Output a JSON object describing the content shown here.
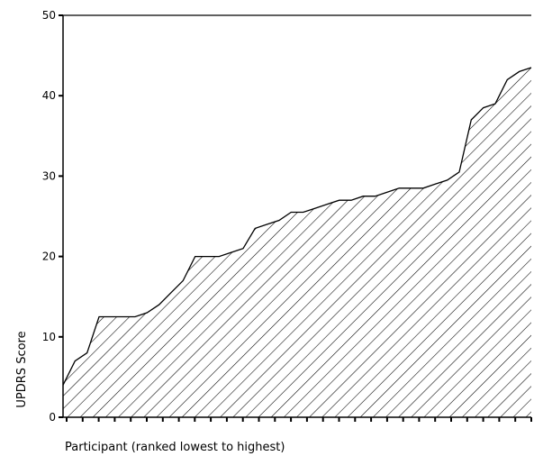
{
  "chart_data": {
    "type": "area",
    "xlabel": "Participant (ranked lowest to highest)",
    "ylabel": "UPDRS Score",
    "ylim": [
      0,
      50
    ],
    "yticks": [
      0,
      10,
      20,
      30,
      40,
      50
    ],
    "x_tick_count": 30,
    "fill_pattern": "diagonal-hatch",
    "grid": false,
    "series": [
      {
        "values": [
          4,
          7,
          8,
          12.5,
          12.5,
          12.5,
          12.5,
          13,
          14,
          15.5,
          17,
          20,
          20,
          20,
          20.5,
          21,
          23.5,
          24,
          24.5,
          25.5,
          25.5,
          26,
          26.5,
          27,
          27,
          27.5,
          27.5,
          28,
          28.5,
          28.5,
          28.5,
          29,
          29.5,
          30.5,
          37,
          38.5,
          39,
          42,
          43,
          43.5
        ]
      }
    ]
  }
}
